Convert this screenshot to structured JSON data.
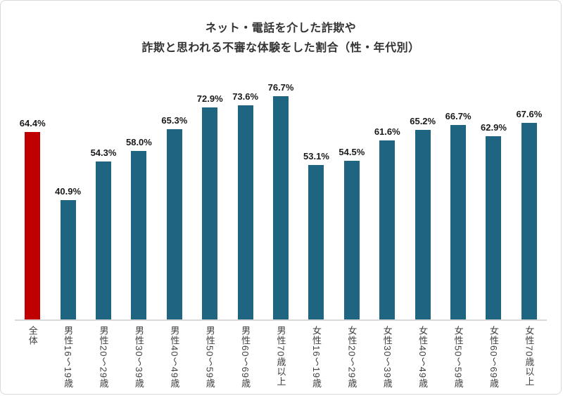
{
  "chart_data": {
    "type": "bar",
    "title_lines": [
      "ネット・電話を介した詐欺や",
      "詐欺と思われる不審な体験をした割合（性・年代別）"
    ],
    "categories": [
      "全体",
      "男性16〜19歳",
      "男性20〜29歳",
      "男性30〜39歳",
      "男性40〜49歳",
      "男性50〜59歳",
      "男性60〜69歳",
      "男性70歳以上",
      "女性16〜19歳",
      "女性20〜29歳",
      "女性30〜39歳",
      "女性40〜49歳",
      "女性50〜59歳",
      "女性60〜69歳",
      "女性70歳以上"
    ],
    "values": [
      64.4,
      40.9,
      54.3,
      58.0,
      65.3,
      72.9,
      73.6,
      76.7,
      53.1,
      54.5,
      61.6,
      65.2,
      66.7,
      62.9,
      67.6
    ],
    "value_labels": [
      "64.4%",
      "40.9%",
      "54.3%",
      "58.0%",
      "65.3%",
      "72.9%",
      "73.6%",
      "76.7%",
      "53.1%",
      "54.5%",
      "61.6%",
      "65.2%",
      "66.7%",
      "62.9%",
      "67.6%"
    ],
    "xlabel": "",
    "ylabel": "",
    "ylim": [
      0,
      80
    ],
    "grid": false,
    "legend": false,
    "bar_color": "#1f6480",
    "highlight_color": "#c00000",
    "highlight_index": 0,
    "axis_line_color": "#d9d9d9"
  }
}
